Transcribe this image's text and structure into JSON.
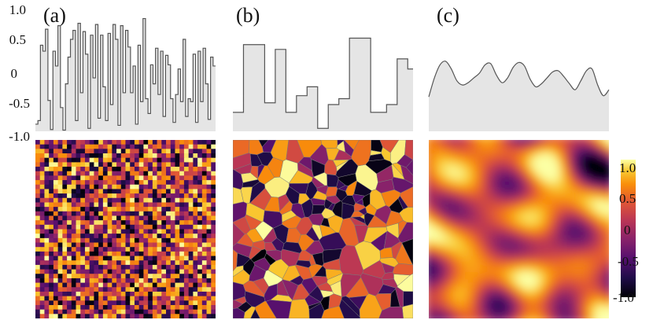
{
  "chart_data": [
    {
      "type": "area",
      "panel_label": "(a)",
      "description_free": true,
      "ylim": [
        -1.0,
        1.0
      ],
      "yticks": [
        "1.0",
        "0.5",
        "0",
        "-0.5",
        "-1.0"
      ],
      "ytick_values": [
        1.0,
        0.5,
        0,
        -0.5,
        -1.0
      ],
      "step": true,
      "values": [
        -0.88,
        -0.82,
        0.45,
        0.35,
        0.72,
        -0.48,
        -0.97,
        0.35,
        0.1,
        0.78,
        -0.6,
        -0.98,
        -0.2,
        0.25,
        0.55,
        0.7,
        -0.82,
        0.82,
        -0.35,
        0.68,
        0.3,
        -0.95,
        0.62,
        -0.1,
        0.8,
        -0.78,
        0.62,
        -0.25,
        -0.82,
        0.65,
        -0.55,
        0.8,
        0.55,
        -0.9,
        0.78,
        -0.35,
        0.7,
        0.42,
        -0.35,
        0.1,
        -0.88,
        0.45,
        -0.5,
        0.9,
        -0.45,
        -0.7,
        0.12,
        -0.2,
        0.4,
        -0.38,
        0.35,
        -0.75,
        0.28,
        0.12,
        -0.45,
        -0.85,
        -0.38,
        0.05,
        -0.5,
        0.55,
        -0.75,
        -0.45,
        -0.5,
        0.3,
        -0.85,
        0.35,
        -0.5,
        0.4,
        -0.2,
        -0.8,
        0.25,
        0.1
      ],
      "heatmap": {
        "type": "heatmap",
        "rows": 40,
        "cols": 40,
        "style": "pixel"
      }
    },
    {
      "type": "area",
      "panel_label": "(b)",
      "ylim": [
        -1.0,
        1.0
      ],
      "step": true,
      "values": [
        -0.68,
        -0.68,
        0.46,
        0.46,
        0.46,
        0.46,
        -0.52,
        -0.52,
        0.38,
        0.38,
        -0.68,
        -0.68,
        -0.4,
        -0.4,
        -0.25,
        -0.25,
        -0.95,
        -0.95,
        -0.55,
        -0.55,
        -0.45,
        -0.45,
        0.57,
        0.57,
        0.57,
        0.57,
        -0.68,
        -0.68,
        -0.68,
        -0.55,
        -0.55,
        0.22,
        0.22,
        0.05
      ],
      "heatmap": {
        "type": "heatmap",
        "style": "voronoi",
        "cells": 230
      }
    },
    {
      "type": "area",
      "panel_label": "(c)",
      "ylim": [
        -1.0,
        1.0
      ],
      "step": false,
      "values": [
        -0.42,
        -0.1,
        0.12,
        0.18,
        0.05,
        -0.15,
        -0.22,
        -0.18,
        -0.1,
        -0.02,
        0.12,
        0.14,
        -0.05,
        -0.18,
        -0.1,
        0.08,
        0.16,
        0.1,
        -0.12,
        -0.25,
        -0.2,
        -0.1,
        0.0,
        0.02,
        -0.08,
        -0.2,
        -0.3,
        -0.15,
        0.02,
        0.05,
        -0.22,
        -0.4,
        -0.3
      ],
      "heatmap": {
        "type": "heatmap",
        "style": "smooth",
        "rows": 46,
        "cols": 46
      }
    }
  ],
  "colorbar": {
    "range": [
      -1.0,
      1.0
    ],
    "ticks": [
      "1.0",
      "0.5",
      "0",
      "-0.5",
      "-1.0"
    ],
    "tick_values": [
      1.0,
      0.5,
      0,
      -0.5,
      -1.0
    ],
    "colormap": "inferno"
  },
  "colors": {
    "profile_fill": "#e5e5e5",
    "profile_line": "#555555"
  }
}
